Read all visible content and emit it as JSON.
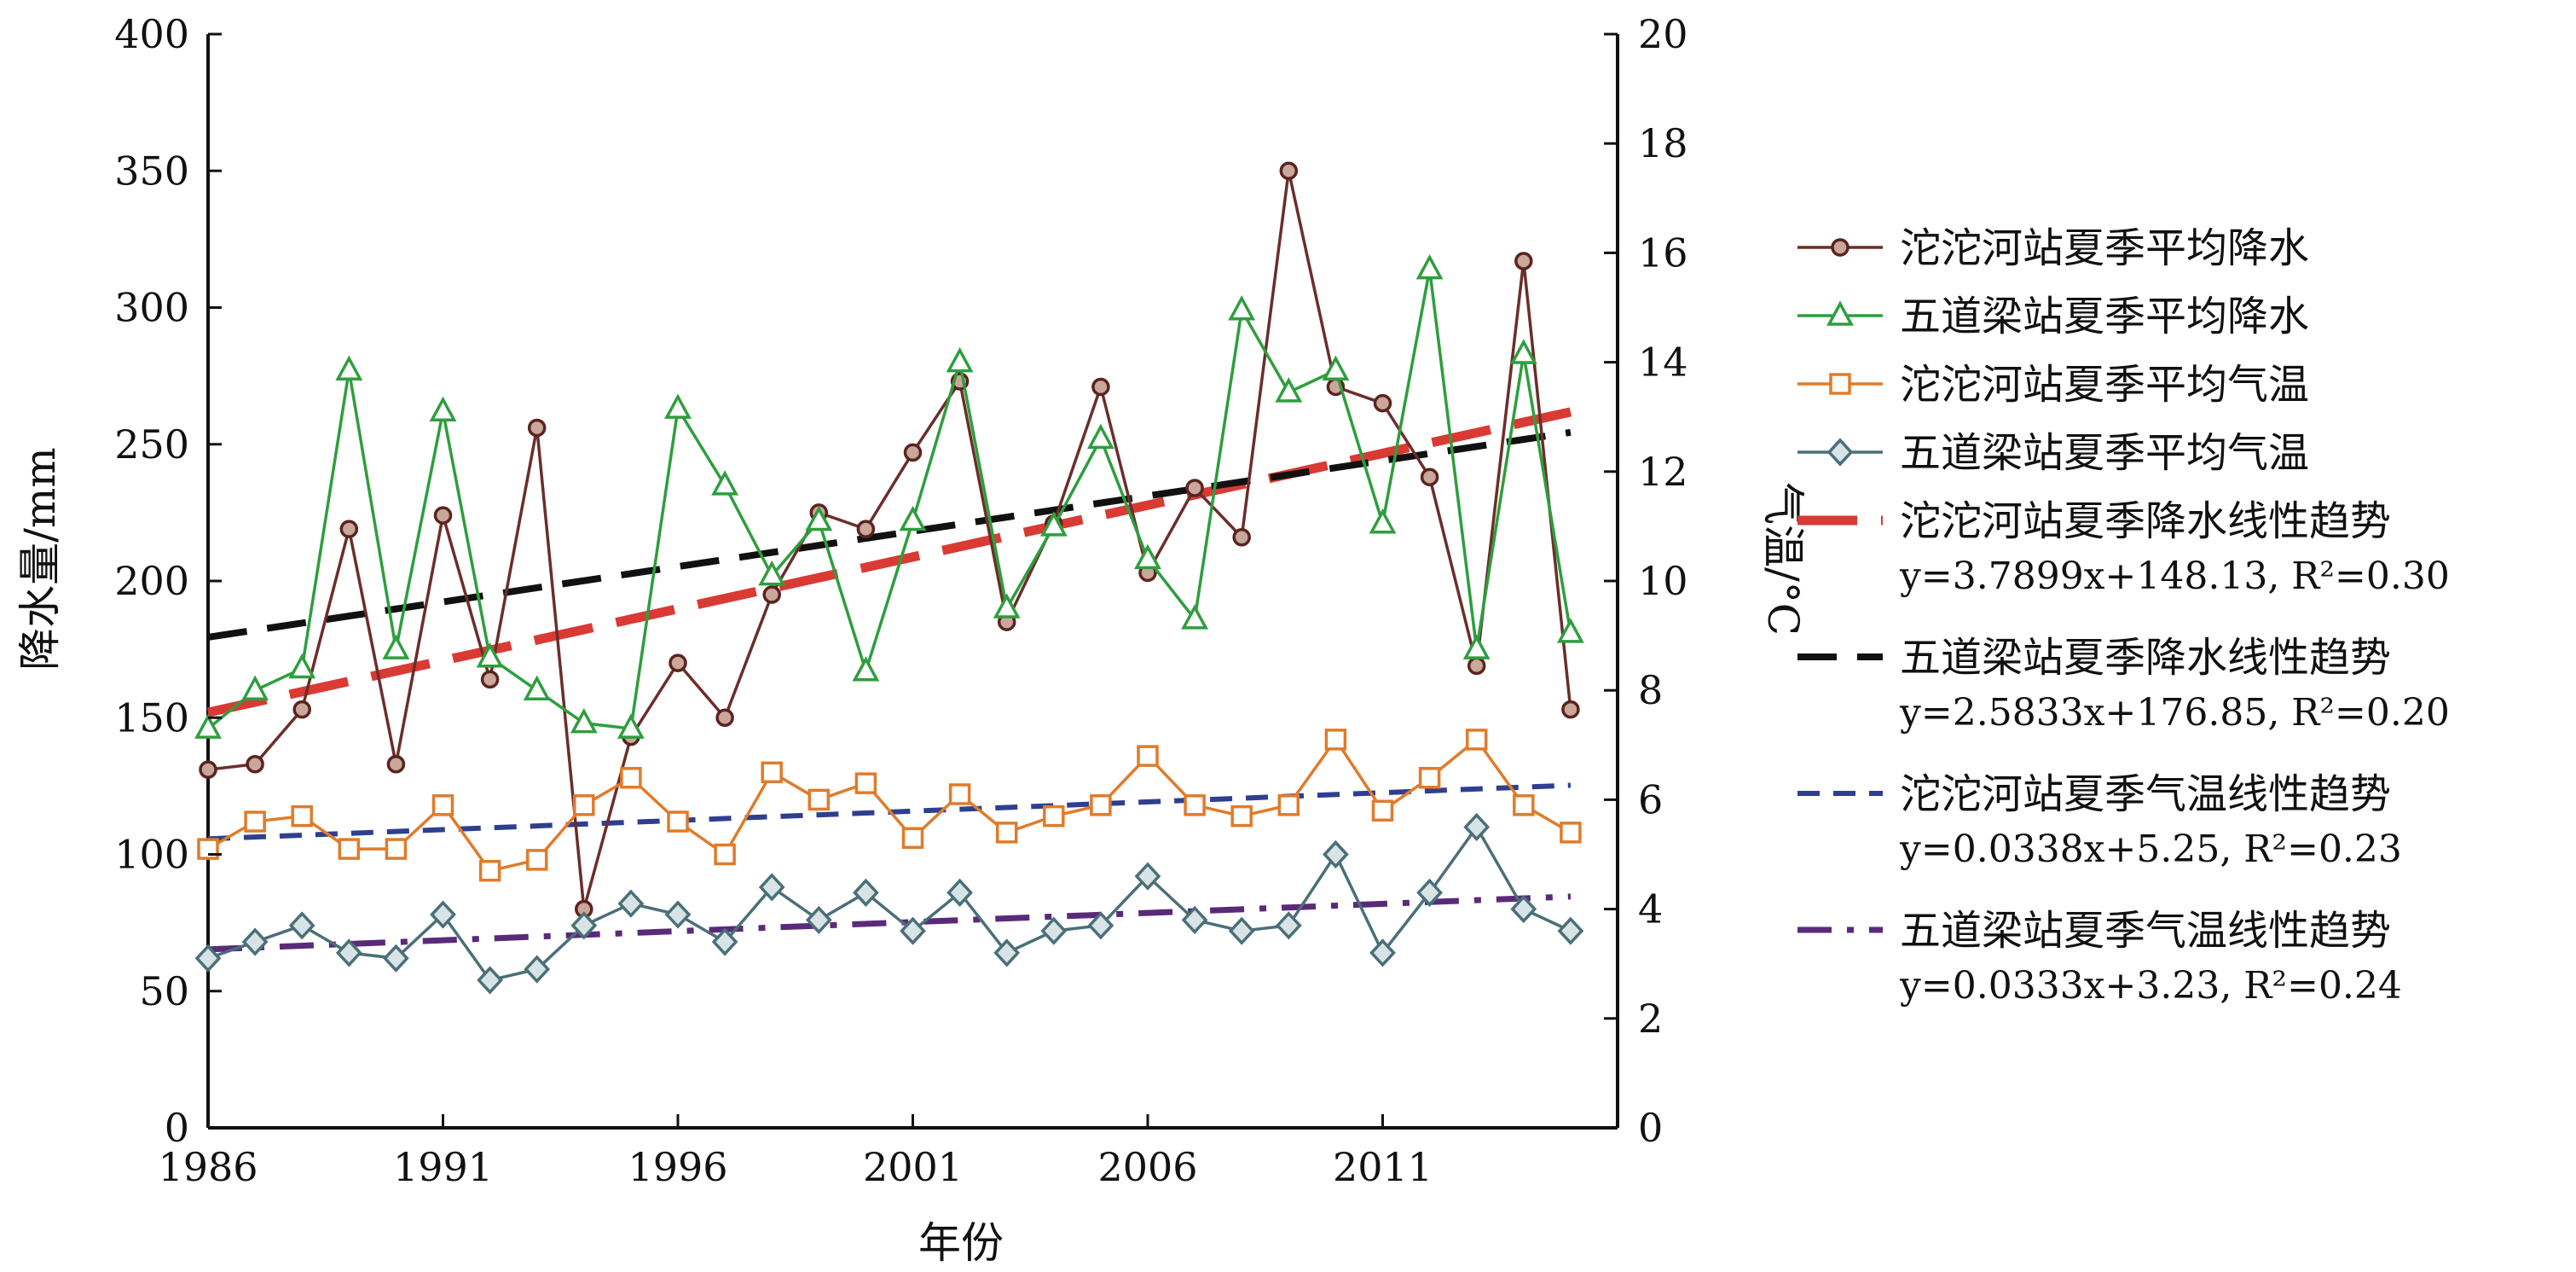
{
  "chart_data": {
    "type": "line",
    "xlabel": "年份",
    "ylabel": "降水量/mm",
    "y2label": "气温/°C",
    "xlim": [
      1986,
      2016
    ],
    "ylim": [
      0,
      400
    ],
    "y2lim": [
      0,
      20
    ],
    "x_ticks": [
      "1986",
      "1991",
      "1996",
      "2001",
      "2006",
      "2011"
    ],
    "y_ticks": [
      "0",
      "50",
      "100",
      "150",
      "200",
      "250",
      "300",
      "350",
      "400"
    ],
    "y2_ticks": [
      "0",
      "2",
      "4",
      "6",
      "8",
      "10",
      "12",
      "14",
      "16",
      "18",
      "20"
    ],
    "grid": false,
    "legend_position": "right",
    "years": [
      1986,
      1987,
      1988,
      1989,
      1990,
      1991,
      1992,
      1993,
      1994,
      1995,
      1996,
      1997,
      1998,
      1999,
      2000,
      2001,
      2002,
      2003,
      2004,
      2005,
      2006,
      2007,
      2008,
      2009,
      2010,
      2011,
      2012,
      2013,
      2014,
      2015
    ],
    "series": [
      {
        "name": "沱沱河站夏季平均降水",
        "axis": "left",
        "color": "#6b2e2a",
        "marker": "circle",
        "values": [
          131,
          133,
          153,
          219,
          133,
          224,
          164,
          256,
          80,
          143,
          170,
          150,
          195,
          225,
          219,
          247,
          273,
          185,
          221,
          271,
          203,
          234,
          216,
          350,
          271,
          265,
          238,
          169,
          317,
          153
        ]
      },
      {
        "name": "五道梁站夏季平均降水",
        "axis": "left",
        "color": "#2e9e3e",
        "marker": "triangle",
        "values": [
          146,
          160,
          168,
          277,
          175,
          262,
          172,
          160,
          148,
          146,
          263,
          235,
          202,
          222,
          167,
          222,
          280,
          190,
          220,
          252,
          208,
          186,
          299,
          269,
          277,
          221,
          314,
          175,
          283,
          181
        ]
      },
      {
        "name": "沱沱河站夏季平均气温",
        "axis": "right",
        "color": "#e07b2a",
        "marker": "square",
        "values": [
          5.1,
          5.6,
          5.7,
          5.1,
          5.1,
          5.9,
          4.7,
          4.9,
          5.9,
          6.4,
          5.6,
          5.0,
          6.5,
          6.0,
          6.3,
          5.3,
          6.1,
          5.4,
          5.7,
          5.9,
          6.8,
          5.9,
          5.7,
          5.9,
          7.1,
          5.8,
          6.4,
          7.1,
          5.9,
          5.4
        ]
      },
      {
        "name": "五道梁站夏季平均气温",
        "axis": "right",
        "color": "#4a6f78",
        "marker": "diamond",
        "values": [
          3.1,
          3.4,
          3.7,
          3.2,
          3.1,
          3.9,
          2.7,
          2.9,
          3.7,
          4.1,
          3.9,
          3.4,
          4.4,
          3.8,
          4.3,
          3.6,
          4.3,
          3.2,
          3.6,
          3.7,
          4.6,
          3.8,
          3.6,
          3.7,
          5.0,
          3.2,
          4.3,
          5.5,
          4.0,
          3.6
        ]
      }
    ],
    "trendlines": [
      {
        "name": "沱沱河站夏季降水线性趋势",
        "axis": "left",
        "color": "#d93a34",
        "style": "long-dash",
        "slope": 3.7899,
        "intercept": 148.13,
        "equation": "y=3.7899x+148.13, R²=0.30"
      },
      {
        "name": "五道梁站夏季降水线性趋势",
        "axis": "left",
        "color": "#111111",
        "style": "dash",
        "slope": 2.5833,
        "intercept": 176.85,
        "equation": "y=2.5833x+176.85, R²=0.20"
      },
      {
        "name": "沱沱河站夏季气温线性趋势",
        "axis": "right",
        "color": "#2f3f8f",
        "style": "short-dash",
        "slope": 0.0338,
        "intercept": 5.25,
        "equation": "y=0.0338x+5.25, R²=0.23"
      },
      {
        "name": "五道梁站夏季气温线性趋势",
        "axis": "right",
        "color": "#5a2a7a",
        "style": "dash-dot",
        "slope": 0.0333,
        "intercept": 3.23,
        "equation": "y=0.0333x+3.23, R²=0.24"
      }
    ]
  }
}
